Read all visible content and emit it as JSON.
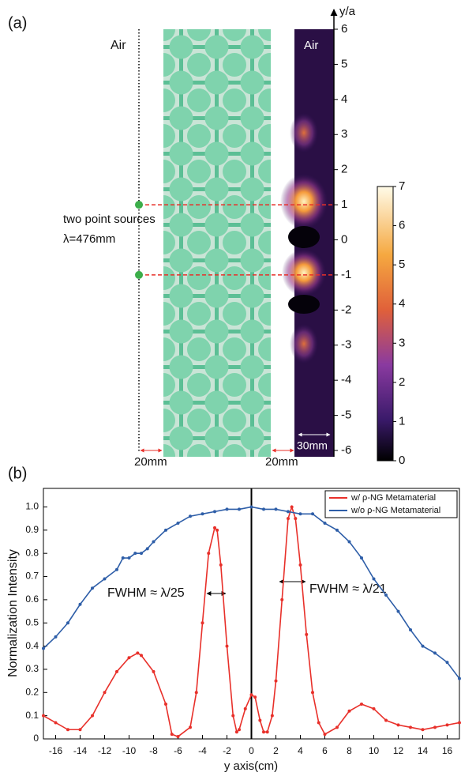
{
  "panel_a": {
    "label": "(a)",
    "air_left": "Air",
    "air_right": "Air",
    "sources_text": "two point sources",
    "wavelength": "λ=476mm",
    "gap_left": "20mm",
    "gap_right": "20mm",
    "width_right": "30mm",
    "axis_title": "y/a",
    "ylim": [
      -6,
      6
    ],
    "yticks": [
      6,
      5,
      4,
      3,
      2,
      1,
      0,
      -1,
      -2,
      -3,
      -4,
      -5,
      -6
    ],
    "sources_y": [
      1,
      -1
    ],
    "colorbar_lim": [
      0,
      7
    ],
    "colorbar_ticks": [
      7,
      6,
      5,
      4,
      3,
      2,
      1,
      0
    ]
  },
  "chart_data": {
    "type": "line",
    "panel_label": "(b)",
    "x_label": "y axis(cm)",
    "y_label": "Normalization Intensity",
    "xlim": [
      -17,
      17
    ],
    "ylim": [
      0,
      1.08
    ],
    "xticks": [
      -16,
      -14,
      -12,
      -10,
      -8,
      -6,
      -4,
      -2,
      0,
      2,
      4,
      6,
      8,
      10,
      12,
      14,
      16
    ],
    "yticks": [
      0,
      0.1,
      0.2,
      0.3,
      0.4,
      0.5,
      0.6,
      0.7,
      0.8,
      0.9,
      {
        "value": 1,
        "label": "1.0"
      }
    ],
    "legend": "upper right",
    "annotations": [
      "FWHM ≈ λ/25",
      "FWHM ≈ λ/21"
    ],
    "series": [
      {
        "name": "w/  ρ-NG Metamaterial",
        "color": "#e8302a",
        "x": [
          -17,
          -16,
          -15,
          -14,
          -13,
          -12,
          -11,
          -10,
          -9.3,
          -9,
          -8,
          -7,
          -6.5,
          -6,
          -5,
          -4.5,
          -4,
          -3.5,
          -3,
          -2.8,
          -2.5,
          -2,
          -1.5,
          -1.2,
          -1,
          -0.5,
          0,
          0.3,
          0.7,
          1,
          1.3,
          1.7,
          2,
          2.5,
          3,
          3.3,
          3.6,
          4,
          4.5,
          5,
          5.5,
          6,
          7,
          8,
          9,
          10,
          11,
          12,
          13,
          14,
          15,
          16,
          17
        ],
        "values": [
          0.1,
          0.07,
          0.04,
          0.04,
          0.1,
          0.2,
          0.29,
          0.35,
          0.37,
          0.36,
          0.29,
          0.15,
          0.02,
          0.01,
          0.05,
          0.2,
          0.5,
          0.8,
          0.91,
          0.9,
          0.75,
          0.4,
          0.1,
          0.03,
          0.04,
          0.13,
          0.19,
          0.18,
          0.08,
          0.03,
          0.03,
          0.1,
          0.25,
          0.6,
          0.95,
          1.0,
          0.95,
          0.75,
          0.45,
          0.2,
          0.07,
          0.02,
          0.05,
          0.12,
          0.15,
          0.13,
          0.08,
          0.06,
          0.05,
          0.04,
          0.05,
          0.06,
          0.07
        ]
      },
      {
        "name": "w/o ρ-NG Metamaterial",
        "color": "#2e5ea8",
        "x": [
          -17,
          -16,
          -15,
          -14,
          -13,
          -12,
          -11,
          -10.5,
          -10,
          -9.5,
          -9,
          -8.5,
          -8,
          -7,
          -6,
          -5,
          -4,
          -3,
          -2,
          -1,
          0,
          1,
          2,
          3,
          4,
          5,
          6,
          7,
          8,
          9,
          10,
          11,
          12,
          13,
          14,
          15,
          16,
          17
        ],
        "values": [
          0.39,
          0.44,
          0.5,
          0.58,
          0.65,
          0.69,
          0.73,
          0.78,
          0.78,
          0.8,
          0.8,
          0.82,
          0.85,
          0.9,
          0.93,
          0.96,
          0.97,
          0.98,
          0.99,
          0.99,
          1.0,
          0.99,
          0.99,
          0.98,
          0.97,
          0.97,
          0.93,
          0.9,
          0.85,
          0.78,
          0.69,
          0.62,
          0.55,
          0.47,
          0.4,
          0.37,
          0.33,
          0.26
        ]
      }
    ]
  }
}
